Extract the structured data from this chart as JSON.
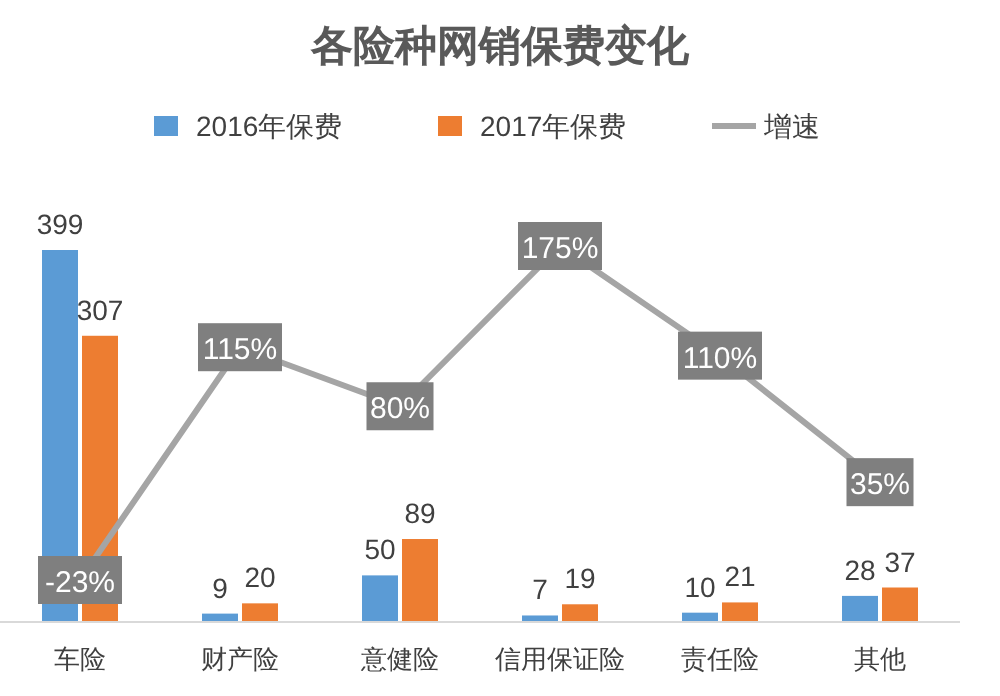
{
  "chart_data": {
    "type": "bar",
    "title": "各险种网销保费变化",
    "categories": [
      "车险",
      "财产险",
      "意健险",
      "信用保证险",
      "责任险",
      "其他"
    ],
    "series": [
      {
        "name": "2016年保费",
        "color": "#5b9bd5",
        "values": [
          399,
          9,
          50,
          7,
          10,
          28
        ],
        "value_labels": [
          "399",
          "9",
          "50",
          "7",
          "10",
          "28"
        ]
      },
      {
        "name": "2017年保费",
        "color": "#ed7d31",
        "values": [
          307,
          20,
          89,
          19,
          21,
          37
        ],
        "value_labels": [
          "307",
          "20",
          "89",
          "19",
          "21",
          "37"
        ]
      },
      {
        "name": "增速",
        "type": "line",
        "axis": "y2",
        "marker": "square",
        "color": "#a5a5a5",
        "values": [
          -23,
          115,
          80,
          175,
          110,
          35
        ],
        "value_labels": [
          "-23%",
          "115%",
          "80%",
          "175%",
          "110%",
          "35%"
        ]
      }
    ],
    "legend": "top"
  }
}
